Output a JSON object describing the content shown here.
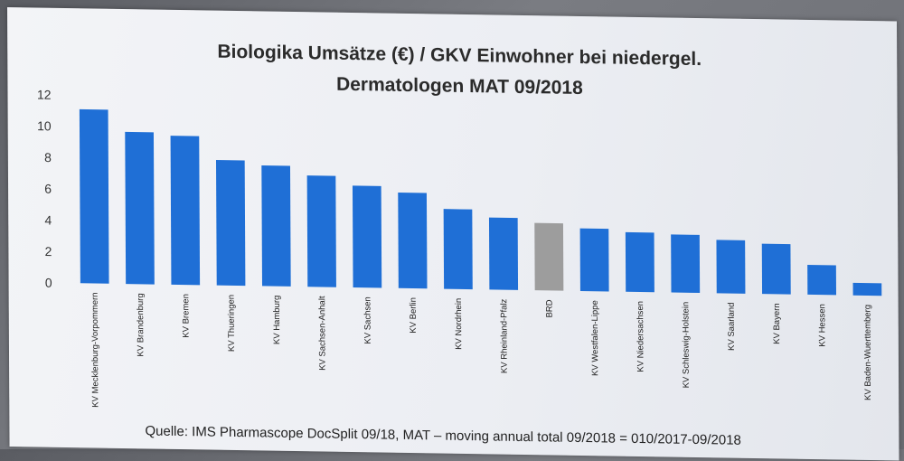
{
  "chart_data": {
    "type": "bar",
    "title_line1": "Biologika Umsätze (€) / GKV Einwohner bei niedergel.",
    "title_line2": "Dermatologen MAT 09/2018",
    "source": "Quelle: IMS Pharmascope DocSplit 09/18, MAT – moving annual total 09/2018 = 010/2017-09/2018",
    "ylim": [
      0,
      12
    ],
    "yticks": [
      0,
      2,
      4,
      6,
      8,
      10,
      12
    ],
    "categories": [
      "KV Mecklenburg-Vorpommern",
      "KV Brandenburg",
      "KV Bremen",
      "KV Thueringen",
      "KV Hamburg",
      "KV Sachsen-Anhalt",
      "KV Sachsen",
      "KV Berlin",
      "KV Nordrhein",
      "KV Rheinland-Pfalz",
      "BRD",
      "KV Westfalen-Lippe",
      "KV Niedersachsen",
      "KV Schleswig-Holstein",
      "KV Saarland",
      "KV Bayern",
      "KV Hessen",
      "KV Baden-Wuerttemberg"
    ],
    "values": [
      11.1,
      9.7,
      9.5,
      8.0,
      7.7,
      7.1,
      6.5,
      6.1,
      5.1,
      4.6,
      4.3,
      4.0,
      3.8,
      3.7,
      3.4,
      3.2,
      1.9,
      0.8
    ],
    "colors": {
      "default": "#1f6fd6",
      "highlight": "#9d9d9d",
      "highlight_category": "BRD"
    }
  }
}
